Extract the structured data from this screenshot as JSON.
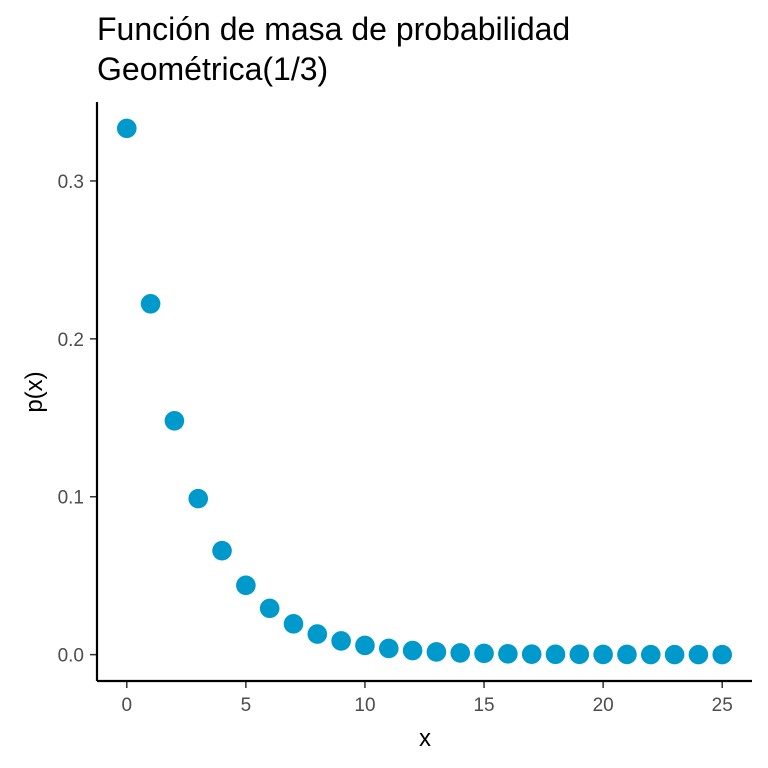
{
  "chart_data": {
    "type": "scatter",
    "title": "Función de masa de probabilidad",
    "subtitle": "Geométrica(1/3)",
    "xlabel": "x",
    "ylabel": "p(x)",
    "xlim": [
      -1.25,
      26.25
    ],
    "ylim": [
      -0.0167,
      0.35
    ],
    "x_ticks": [
      0,
      5,
      10,
      15,
      20,
      25
    ],
    "x_tick_labels": [
      "0",
      "5",
      "10",
      "15",
      "20",
      "25"
    ],
    "y_ticks": [
      0.0,
      0.1,
      0.2,
      0.3
    ],
    "y_tick_labels": [
      "0.0",
      "0.1",
      "0.2",
      "0.3"
    ],
    "grid": false,
    "point_color": "#0099CC",
    "series": [
      {
        "x": [
          0,
          1,
          2,
          3,
          4,
          5,
          6,
          7,
          8,
          9,
          10,
          11,
          12,
          13,
          14,
          15,
          16,
          17,
          18,
          19,
          20,
          21,
          22,
          23,
          24,
          25
        ],
        "y": [
          0.3333,
          0.2222,
          0.1481,
          0.0988,
          0.0658,
          0.0439,
          0.0293,
          0.0195,
          0.013,
          0.0087,
          0.0058,
          0.0039,
          0.0026,
          0.0017,
          0.0011,
          0.0008,
          0.0005,
          0.0003,
          0.0002,
          0.0002,
          0.0001,
          0.0001,
          0.0,
          0.0,
          0.0,
          0.0
        ]
      }
    ]
  }
}
